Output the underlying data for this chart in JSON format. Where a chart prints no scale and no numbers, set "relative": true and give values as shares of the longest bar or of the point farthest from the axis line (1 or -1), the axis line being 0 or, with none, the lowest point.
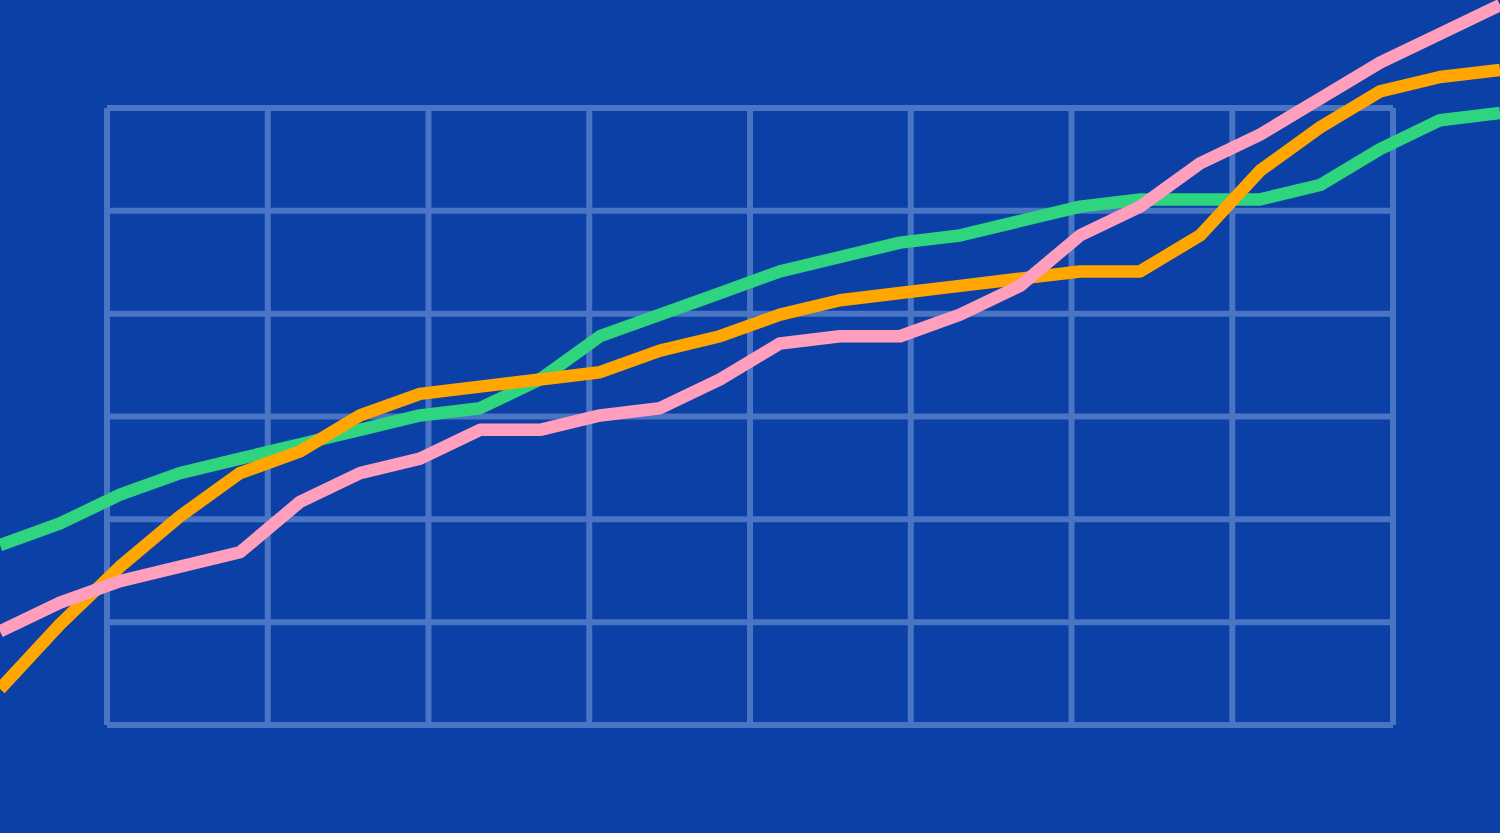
{
  "chart_data": {
    "type": "line",
    "relative": true,
    "grid": true,
    "categories": [
      null,
      null,
      null,
      null,
      null,
      null,
      null,
      null,
      null,
      null,
      null,
      null,
      null,
      null,
      null,
      null,
      null,
      null,
      null,
      null,
      null,
      null,
      null,
      null,
      null,
      null
    ],
    "series": [
      {
        "color": "#2ed47e",
        "values": [
          0.25,
          0.28,
          0.32,
          0.35,
          0.37,
          0.39,
          0.41,
          0.43,
          0.44,
          0.48,
          0.54,
          0.57,
          0.6,
          0.63,
          0.65,
          0.67,
          0.68,
          0.7,
          0.72,
          0.73,
          0.73,
          0.73,
          0.75,
          0.8,
          0.84,
          0.85
        ]
      },
      {
        "color": "#ffa600",
        "values": [
          0.05,
          0.14,
          0.22,
          0.29,
          0.35,
          0.38,
          0.43,
          0.46,
          0.47,
          0.48,
          0.49,
          0.52,
          0.54,
          0.57,
          0.59,
          0.6,
          0.61,
          0.62,
          0.63,
          0.63,
          0.68,
          0.77,
          0.83,
          0.88,
          0.9,
          0.91
        ]
      },
      {
        "color": "#ff9fbd",
        "values": [
          0.13,
          0.17,
          0.2,
          0.22,
          0.24,
          0.31,
          0.35,
          0.37,
          0.41,
          0.41,
          0.43,
          0.44,
          0.48,
          0.53,
          0.54,
          0.54,
          0.57,
          0.61,
          0.68,
          0.72,
          0.78,
          0.82,
          0.87,
          0.92,
          0.96,
          1
        ]
      }
    ]
  }
}
